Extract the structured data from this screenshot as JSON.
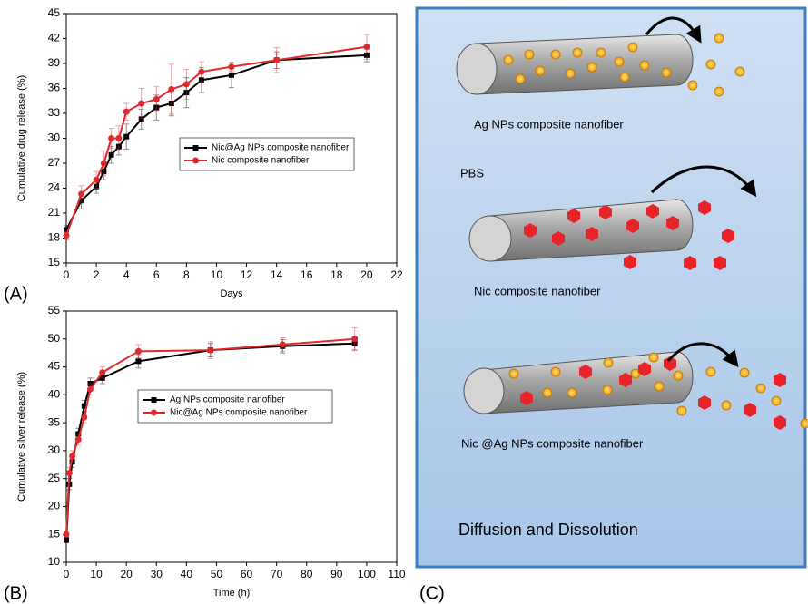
{
  "chart_data": [
    {
      "type": "line",
      "xlabel": "Days",
      "ylabel": "Cumulative drug release (%)",
      "xlim": [
        0,
        22
      ],
      "xticks": [
        0,
        2,
        4,
        6,
        8,
        10,
        12,
        14,
        16,
        18,
        20,
        22
      ],
      "ylim": [
        15,
        45
      ],
      "yticks": [
        15,
        18,
        21,
        24,
        27,
        30,
        33,
        36,
        39,
        42,
        45
      ],
      "legend": "center",
      "series": [
        {
          "name": "Nic@Ag NPs composite nanofiber",
          "color": "#000000",
          "marker": "square",
          "x": [
            0,
            1,
            2,
            2.5,
            3,
            3.5,
            4,
            5,
            6,
            7,
            8,
            9,
            11,
            14,
            20
          ],
          "values": [
            19,
            22.5,
            24.2,
            26,
            28,
            29,
            30.2,
            32.3,
            33.7,
            34.2,
            35.5,
            37,
            37.6,
            39.4,
            40
          ],
          "errors": [
            0.5,
            1,
            0.8,
            1,
            1,
            1,
            1.5,
            1.2,
            1.5,
            1.5,
            1.8,
            1.5,
            1.5,
            1,
            0.8
          ]
        },
        {
          "name": "Nic composite nanofiber",
          "color": "#e0282e",
          "marker": "circle",
          "x": [
            0,
            1,
            2,
            2.5,
            3,
            3.5,
            4,
            5,
            6,
            7,
            8,
            9,
            11,
            14,
            20
          ],
          "values": [
            18.3,
            23.3,
            25,
            27,
            30,
            30,
            33.2,
            34.2,
            34.7,
            35.9,
            36.5,
            38,
            38.6,
            39.4,
            41
          ],
          "errors": [
            0.5,
            1,
            1,
            1.5,
            1.2,
            1.5,
            1,
            1.8,
            1.5,
            3,
            1.8,
            1.2,
            0.5,
            1.5,
            1.5
          ]
        }
      ]
    },
    {
      "type": "line",
      "xlabel": "Time (h)",
      "ylabel": "Cumulative silver release (%)",
      "xlim": [
        0,
        110
      ],
      "xticks": [
        0,
        10,
        20,
        30,
        40,
        50,
        60,
        70,
        80,
        90,
        100,
        110
      ],
      "ylim": [
        10,
        55
      ],
      "yticks": [
        10,
        15,
        20,
        25,
        30,
        35,
        40,
        45,
        50,
        55
      ],
      "legend": "center",
      "series": [
        {
          "name": "Ag NPs composite nanofiber",
          "color": "#000000",
          "marker": "square",
          "x": [
            0,
            1,
            2,
            4,
            6,
            8,
            12,
            24,
            48,
            72,
            96
          ],
          "values": [
            14,
            24,
            28,
            33,
            38,
            42,
            43,
            46,
            48,
            48.7,
            49.2
          ],
          "errors": [
            0.5,
            1,
            1,
            1,
            1,
            1,
            1,
            1.2,
            1.2,
            1.2,
            1.2
          ]
        },
        {
          "name": "Nic@Ag NPs composite nanofiber",
          "color": "#e0282e",
          "marker": "circle",
          "x": [
            0,
            1,
            2,
            4,
            6,
            8,
            12,
            24,
            48,
            72,
            96
          ],
          "values": [
            15,
            26,
            29,
            32,
            36,
            41,
            44,
            47.8,
            48,
            49,
            50
          ],
          "errors": [
            0.5,
            1,
            1,
            1,
            1,
            1,
            1,
            1.2,
            1.5,
            1.2,
            2
          ]
        }
      ]
    }
  ],
  "panels": [
    "(A)",
    "(B)",
    "(C)"
  ],
  "diagram": {
    "labels": [
      "Ag NPs composite nanofiber",
      "PBS",
      "Nic composite nanofiber",
      "Nic @Ag NPs composite nanofiber"
    ],
    "caption": "Diffusion and Dissolution"
  }
}
